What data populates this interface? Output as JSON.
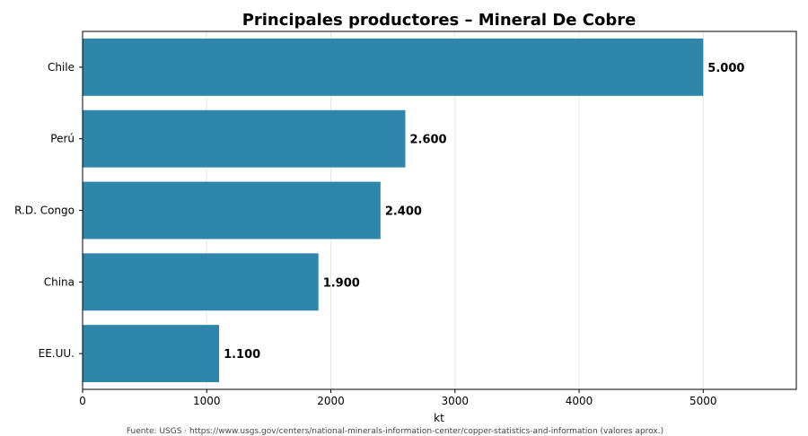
{
  "chart_data": {
    "type": "bar",
    "orientation": "horizontal",
    "title": "Principales productores – Mineral De Cobre",
    "xlabel": "kt",
    "ylabel": "",
    "categories": [
      "Chile",
      "Perú",
      "R.D. Congo",
      "China",
      "EE.UU."
    ],
    "values": [
      5000,
      2600,
      2400,
      1900,
      1100
    ],
    "value_labels": [
      "5.000",
      "2.600",
      "2.400",
      "1.900",
      "1.100"
    ],
    "xlim": [
      0,
      5750
    ],
    "xticks": [
      0,
      1000,
      2000,
      3000,
      4000,
      5000
    ],
    "grid": "vertical",
    "bar_color": "#2e86ab"
  },
  "footer": {
    "source": "Fuente: USGS · https://www.usgs.gov/centers/national-minerals-information-center/copper-statistics-and-information (valores aprox.)"
  }
}
